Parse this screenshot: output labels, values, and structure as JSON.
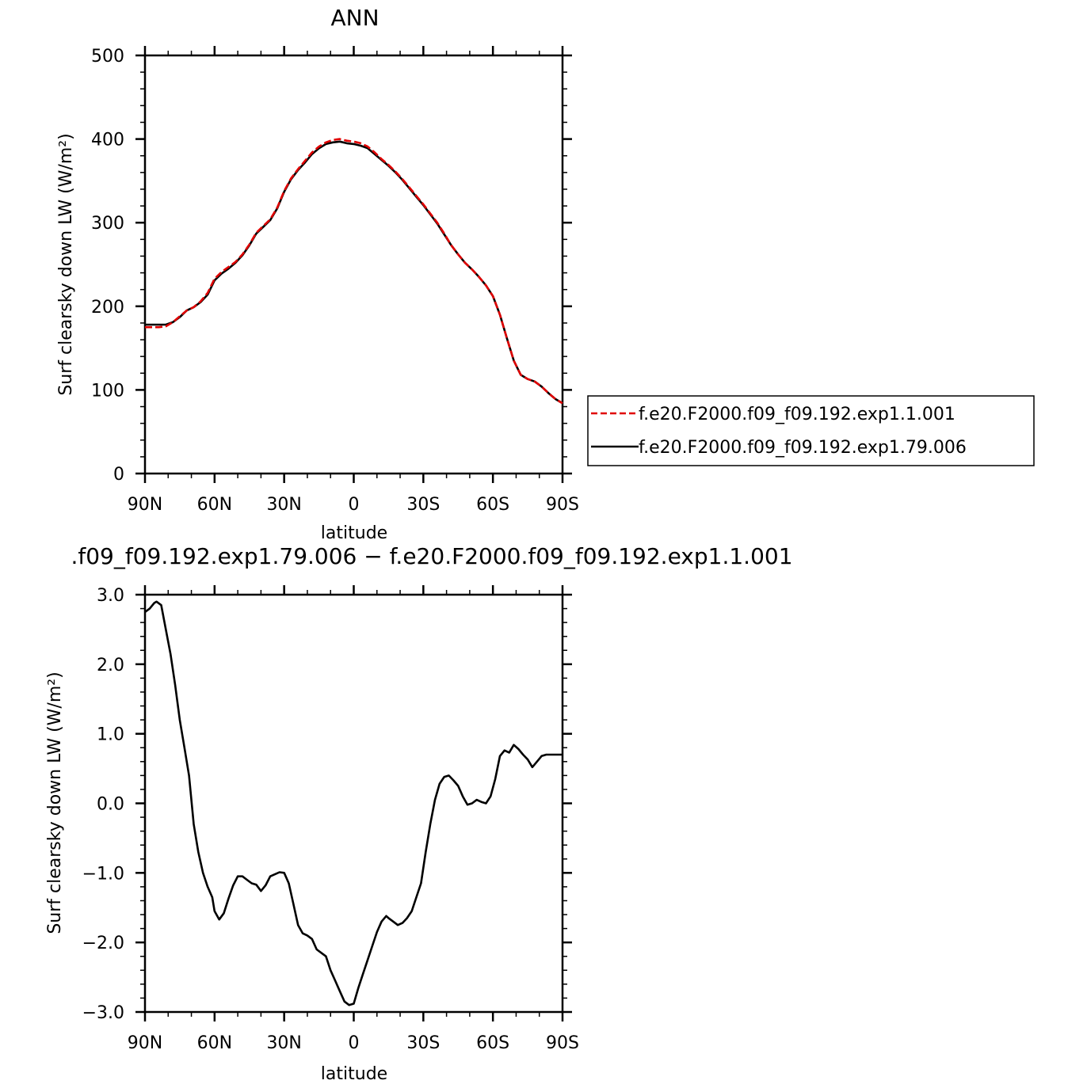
{
  "chart_data": [
    {
      "type": "line",
      "title": "ANN",
      "xlabel": "latitude",
      "ylabel": "Surf clearsky down LW (W/m²)",
      "ylim": [
        0,
        500
      ],
      "yticks": [
        "0",
        "100",
        "200",
        "300",
        "400",
        "500"
      ],
      "xticks": [
        "90N",
        "60N",
        "30N",
        "0",
        "30S",
        "60S",
        "90S"
      ],
      "x": [
        90,
        87,
        84,
        81,
        78,
        75,
        72,
        69,
        66,
        63,
        60,
        57,
        54,
        51,
        48,
        45,
        42,
        39,
        36,
        33,
        30,
        27,
        24,
        21,
        18,
        15,
        12,
        9,
        6,
        3,
        0,
        -3,
        -6,
        -9,
        -12,
        -15,
        -18,
        -21,
        -24,
        -27,
        -30,
        -33,
        -36,
        -39,
        -42,
        -45,
        -48,
        -51,
        -54,
        -57,
        -60,
        -63,
        -66,
        -69,
        -72,
        -75,
        -78,
        -81,
        -84,
        -87,
        -90
      ],
      "series": [
        {
          "name": "f.e20.F2000.f09_f09.192.exp1.1.001",
          "color": "#e00000",
          "dash": true,
          "values": [
            175,
            175,
            175,
            176,
            181,
            188,
            195,
            199,
            206,
            216,
            233,
            241,
            247,
            253,
            262,
            274,
            288,
            296,
            304,
            318,
            338,
            353,
            364,
            374,
            384,
            391,
            396,
            399,
            400,
            398,
            397,
            395,
            391,
            384,
            376,
            369,
            361,
            352,
            342,
            332,
            322,
            311,
            300,
            287,
            273,
            262,
            252,
            244,
            235,
            225,
            212,
            190,
            162,
            135,
            118,
            113,
            110,
            104,
            96,
            89,
            84
          ]
        },
        {
          "name": "f.e20.F2000.f09_f09.192.exp1.79.006",
          "color": "#000000",
          "dash": false,
          "values": [
            178,
            178,
            178,
            178,
            181,
            187,
            195,
            199,
            205,
            214,
            231,
            239,
            245,
            252,
            261,
            273,
            287,
            295,
            303,
            317,
            337,
            352,
            363,
            372,
            382,
            389,
            394,
            396,
            397,
            395,
            394,
            392,
            389,
            382,
            375,
            368,
            360,
            351,
            341,
            331,
            321,
            310,
            299,
            286,
            273,
            262,
            252,
            244,
            235,
            225,
            212,
            190,
            162,
            135,
            118,
            113,
            110,
            104,
            96,
            89,
            84
          ]
        }
      ],
      "legend_position": "right"
    },
    {
      "type": "line",
      "title": ".f09_f09.192.exp1.79.006 − f.e20.F2000.f09_f09.192.exp1.1.001",
      "xlabel": "latitude",
      "ylabel": "Surf clearsky down LW (W/m²)",
      "ylim": [
        -3.0,
        3.0
      ],
      "yticks": [
        "−3.0",
        "−2.0",
        "−1.0",
        "0.0",
        "1.0",
        "2.0",
        "3.0"
      ],
      "xticks": [
        "90N",
        "60N",
        "30N",
        "0",
        "30S",
        "60S",
        "90S"
      ],
      "x": [
        90,
        88,
        86,
        85,
        83,
        81,
        79,
        77,
        75,
        73,
        71,
        69,
        67,
        65,
        63,
        61,
        60,
        58,
        56,
        54,
        52,
        50,
        48,
        46,
        44,
        42,
        40,
        38,
        36,
        34,
        32,
        30,
        28,
        26,
        24,
        22,
        20,
        18,
        16,
        14,
        12,
        10,
        8,
        6,
        4,
        2,
        0,
        -2,
        -4,
        -6,
        -8,
        -10,
        -12,
        -14,
        -15,
        -17,
        -19,
        -21,
        -23,
        -25,
        -27,
        -29,
        -31,
        -33,
        -35,
        -37,
        -39,
        -41,
        -43,
        -45,
        -47,
        -49,
        -51,
        -53,
        -55,
        -57,
        -59,
        -61,
        -63,
        -65,
        -67,
        -69,
        -71,
        -73,
        -75,
        -77,
        -79,
        -81,
        -83,
        -85,
        -87,
        -89,
        -90
      ],
      "series": [
        {
          "name": "",
          "color": "#000000",
          "dash": false,
          "values": [
            2.75,
            2.8,
            2.88,
            2.9,
            2.85,
            2.5,
            2.15,
            1.7,
            1.2,
            0.8,
            0.4,
            -0.3,
            -0.7,
            -1.0,
            -1.2,
            -1.35,
            -1.55,
            -1.67,
            -1.58,
            -1.37,
            -1.18,
            -1.05,
            -1.05,
            -1.1,
            -1.15,
            -1.17,
            -1.26,
            -1.18,
            -1.05,
            -1.02,
            -0.99,
            -1.0,
            -1.15,
            -1.45,
            -1.75,
            -1.87,
            -1.9,
            -1.95,
            -2.1,
            -2.15,
            -2.2,
            -2.4,
            -2.55,
            -2.7,
            -2.85,
            -2.9,
            -2.88,
            -2.65,
            -2.45,
            -2.25,
            -2.05,
            -1.85,
            -1.7,
            -1.62,
            -1.65,
            -1.7,
            -1.75,
            -1.72,
            -1.65,
            -1.55,
            -1.35,
            -1.15,
            -0.7,
            -0.3,
            0.05,
            0.28,
            0.38,
            0.4,
            0.33,
            0.25,
            0.1,
            -0.02,
            0.0,
            0.05,
            0.02,
            0.0,
            0.1,
            0.35,
            0.68,
            0.76,
            0.73,
            0.84,
            0.78,
            0.7,
            0.63,
            0.52,
            0.6,
            0.68,
            0.7,
            0.7,
            0.7,
            0.7,
            0.7
          ]
        }
      ]
    }
  ]
}
